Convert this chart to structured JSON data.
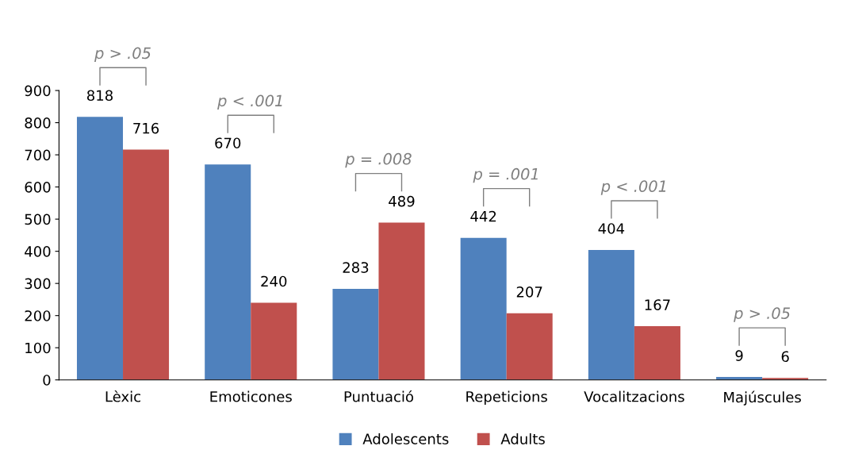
{
  "chart_data": {
    "type": "bar",
    "categories": [
      "Lèxic",
      "Emoticones",
      "Puntuació",
      "Repeticions",
      "Vocalitzacions",
      "Majúscules"
    ],
    "series": [
      {
        "name": "Adolescents",
        "color": "#4f81bd",
        "values": [
          818,
          670,
          283,
          442,
          404,
          9
        ]
      },
      {
        "name": "Adults",
        "color": "#c0504d",
        "values": [
          716,
          240,
          489,
          207,
          167,
          6
        ]
      }
    ],
    "ylim": [
      0,
      900
    ],
    "yticks": [
      0,
      100,
      200,
      300,
      400,
      500,
      600,
      700,
      800,
      900
    ],
    "data_labels": true,
    "grid": false,
    "legend": "bottom",
    "annotations": [
      "p > .05",
      "p < .001",
      "p = .008",
      "p = .001",
      "p < .001",
      "p > .05"
    ]
  }
}
